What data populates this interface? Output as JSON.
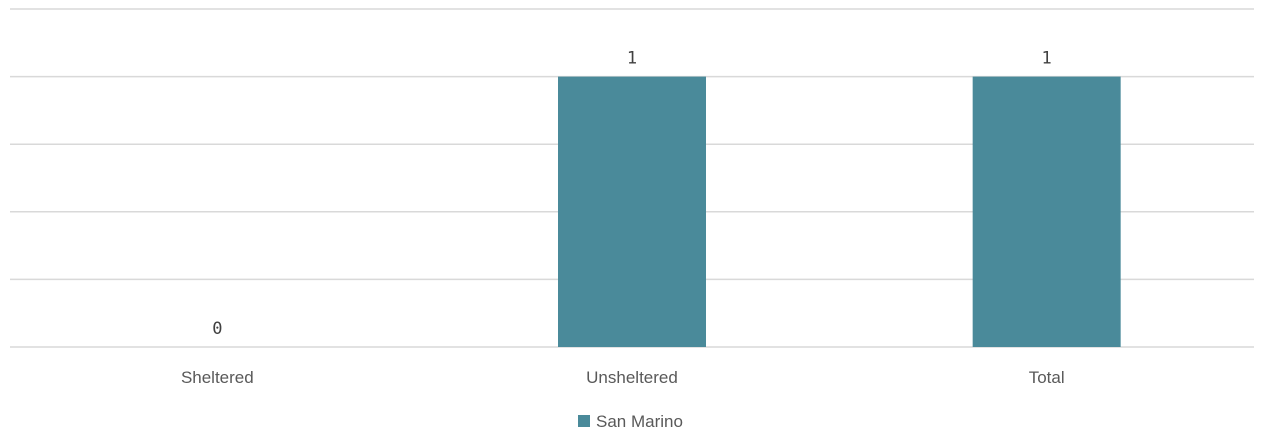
{
  "chart_data": {
    "type": "bar",
    "categories": [
      "Sheltered",
      "Unsheltered",
      "Total"
    ],
    "series": [
      {
        "name": "San Marino",
        "values": [
          0,
          1,
          1
        ],
        "data_labels": [
          "0",
          "1",
          "1"
        ]
      }
    ],
    "ylim": [
      0,
      1.25
    ],
    "grid": true,
    "legend_position": "bottom",
    "colors": {
      "bar": "#4a8a9a",
      "grid": "#d9d9d9"
    }
  }
}
